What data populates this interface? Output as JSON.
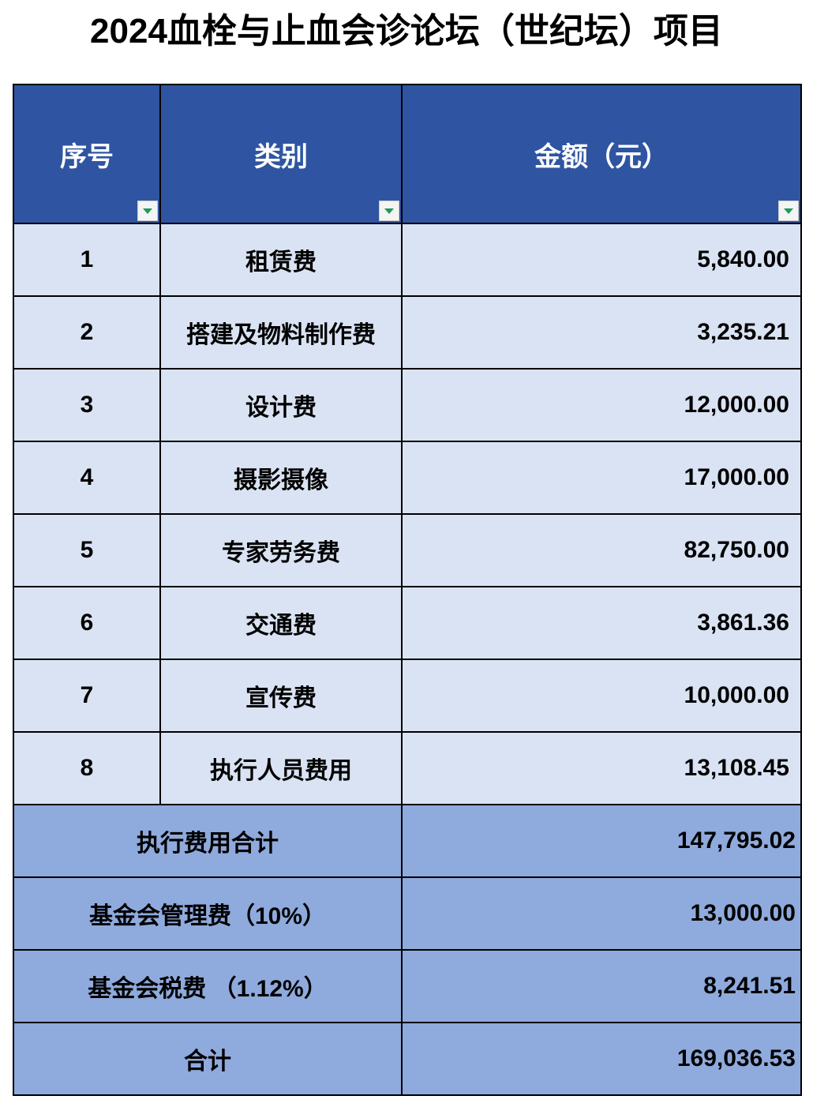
{
  "title": "2024血栓与止血会诊论坛（世纪坛）项目",
  "headers": [
    "序号",
    "类别",
    "金额（元）"
  ],
  "rows": [
    {
      "no": "1",
      "category": "租赁费",
      "amount": "5,840.00"
    },
    {
      "no": "2",
      "category": "搭建及物料制作费",
      "amount": "3,235.21"
    },
    {
      "no": "3",
      "category": "设计费",
      "amount": "12,000.00"
    },
    {
      "no": "4",
      "category": "摄影摄像",
      "amount": "17,000.00"
    },
    {
      "no": "5",
      "category": "专家劳务费",
      "amount": "82,750.00"
    },
    {
      "no": "6",
      "category": "交通费",
      "amount": "3,861.36"
    },
    {
      "no": "7",
      "category": "宣传费",
      "amount": "10,000.00"
    },
    {
      "no": "8",
      "category": "执行人员费用",
      "amount": "13,108.45"
    }
  ],
  "summary": [
    {
      "label": "执行费用合计",
      "amount": "147,795.02"
    },
    {
      "label": "基金会管理费（10%）",
      "amount": "13,000.00"
    },
    {
      "label": "基金会税费 （1.12%）",
      "amount": "8,241.51"
    },
    {
      "label": "合计",
      "amount": "169,036.53"
    }
  ],
  "colors": {
    "header": "#2F55A2",
    "row": "#DAE3F3",
    "summary": "#8FAADC"
  }
}
